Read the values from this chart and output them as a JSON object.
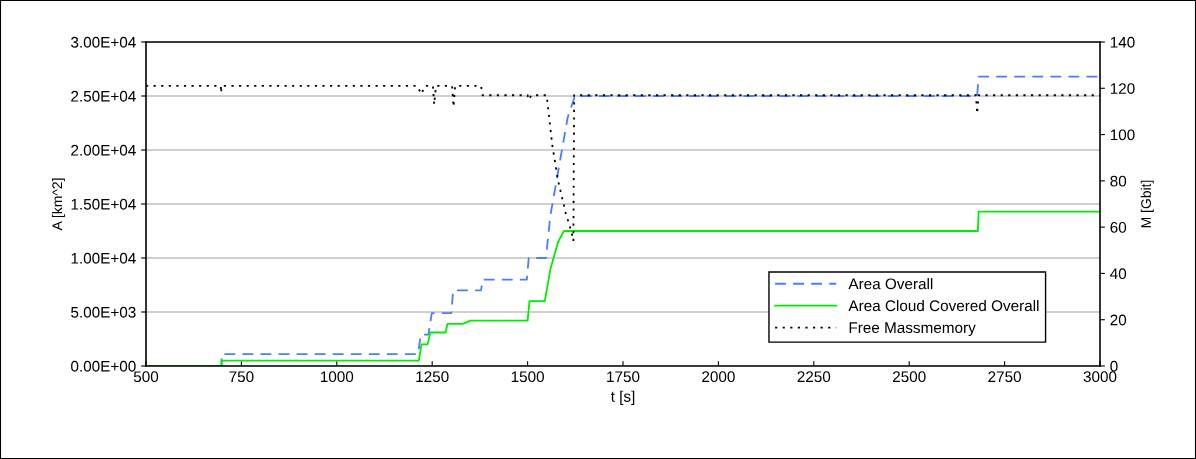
{
  "chart_data": {
    "type": "line",
    "xlabel": "t [s]",
    "ylabel": "A [km^2]",
    "y2label": "M [Gbit]",
    "xlim": [
      500,
      3000
    ],
    "xticks": [
      500,
      750,
      1000,
      1250,
      1500,
      1750,
      2000,
      2250,
      2500,
      2750,
      3000
    ],
    "ylim": [
      0,
      30000
    ],
    "yticks": [
      {
        "value": 0,
        "label": "0.00E+00"
      },
      {
        "value": 5000,
        "label": "5.00E+03"
      },
      {
        "value": 10000,
        "label": "1.00E+04"
      },
      {
        "value": 15000,
        "label": "1.50E+04"
      },
      {
        "value": 20000,
        "label": "2.00E+04"
      },
      {
        "value": 25000,
        "label": "2.50E+04"
      },
      {
        "value": 30000,
        "label": "3.00E+04"
      }
    ],
    "y2lim": [
      0,
      140
    ],
    "y2ticks": [
      0,
      20,
      40,
      60,
      80,
      100,
      120,
      140
    ],
    "grid": "y",
    "legend": "bottom right",
    "series": [
      {
        "name": "Area Overall",
        "color": "#4a7dff",
        "line_style": "dashed",
        "x": [
          500,
          698,
          698,
          1213,
          1220,
          1240,
          1249,
          1300,
          1305,
          1378,
          1382,
          1498,
          1503,
          1548,
          1560,
          1575,
          1590,
          1605,
          1624,
          2678,
          2682,
          3000
        ],
        "values": [
          0,
          0,
          1100,
          1100,
          2900,
          2900,
          4900,
          4900,
          7000,
          7000,
          8000,
          8000,
          10000,
          10000,
          14000,
          17000,
          20000,
          23000,
          25000,
          25000,
          26800,
          26800
        ]
      },
      {
        "name": "Area Cloud Covered Overall",
        "color": "#00ee00",
        "line_style": "solid",
        "x": [
          500,
          698,
          698,
          1215,
          1222,
          1238,
          1245,
          1285,
          1290,
          1330,
          1350,
          1500,
          1505,
          1545,
          1560,
          1580,
          1595,
          2680,
          2682,
          3000
        ],
        "values": [
          0,
          0,
          500,
          500,
          2000,
          2000,
          3100,
          3100,
          3900,
          3900,
          4200,
          4200,
          6000,
          6000,
          9000,
          11500,
          12500,
          12500,
          14300,
          14300
        ]
      },
      {
        "name": "Free Massmemory",
        "color": "#000000",
        "line_style": "dotted",
        "axis": "y2",
        "x": [
          500,
          696,
          697,
          698,
          1210,
          1222,
          1230,
          1252,
          1255,
          1260,
          1302,
          1306,
          1310,
          1378,
          1382,
          1500,
          1503,
          1510,
          1550,
          1565,
          1580,
          1600,
          1615,
          1620,
          1622,
          2675,
          2678,
          2682,
          3000
        ],
        "values": [
          121,
          121,
          118,
          121,
          121,
          117.5,
          121,
          121,
          113,
          121,
          121,
          112,
          121,
          121,
          117,
          117,
          115,
          117,
          117,
          95,
          80,
          66,
          58,
          54,
          117,
          117,
          109,
          117,
          117
        ]
      }
    ]
  }
}
